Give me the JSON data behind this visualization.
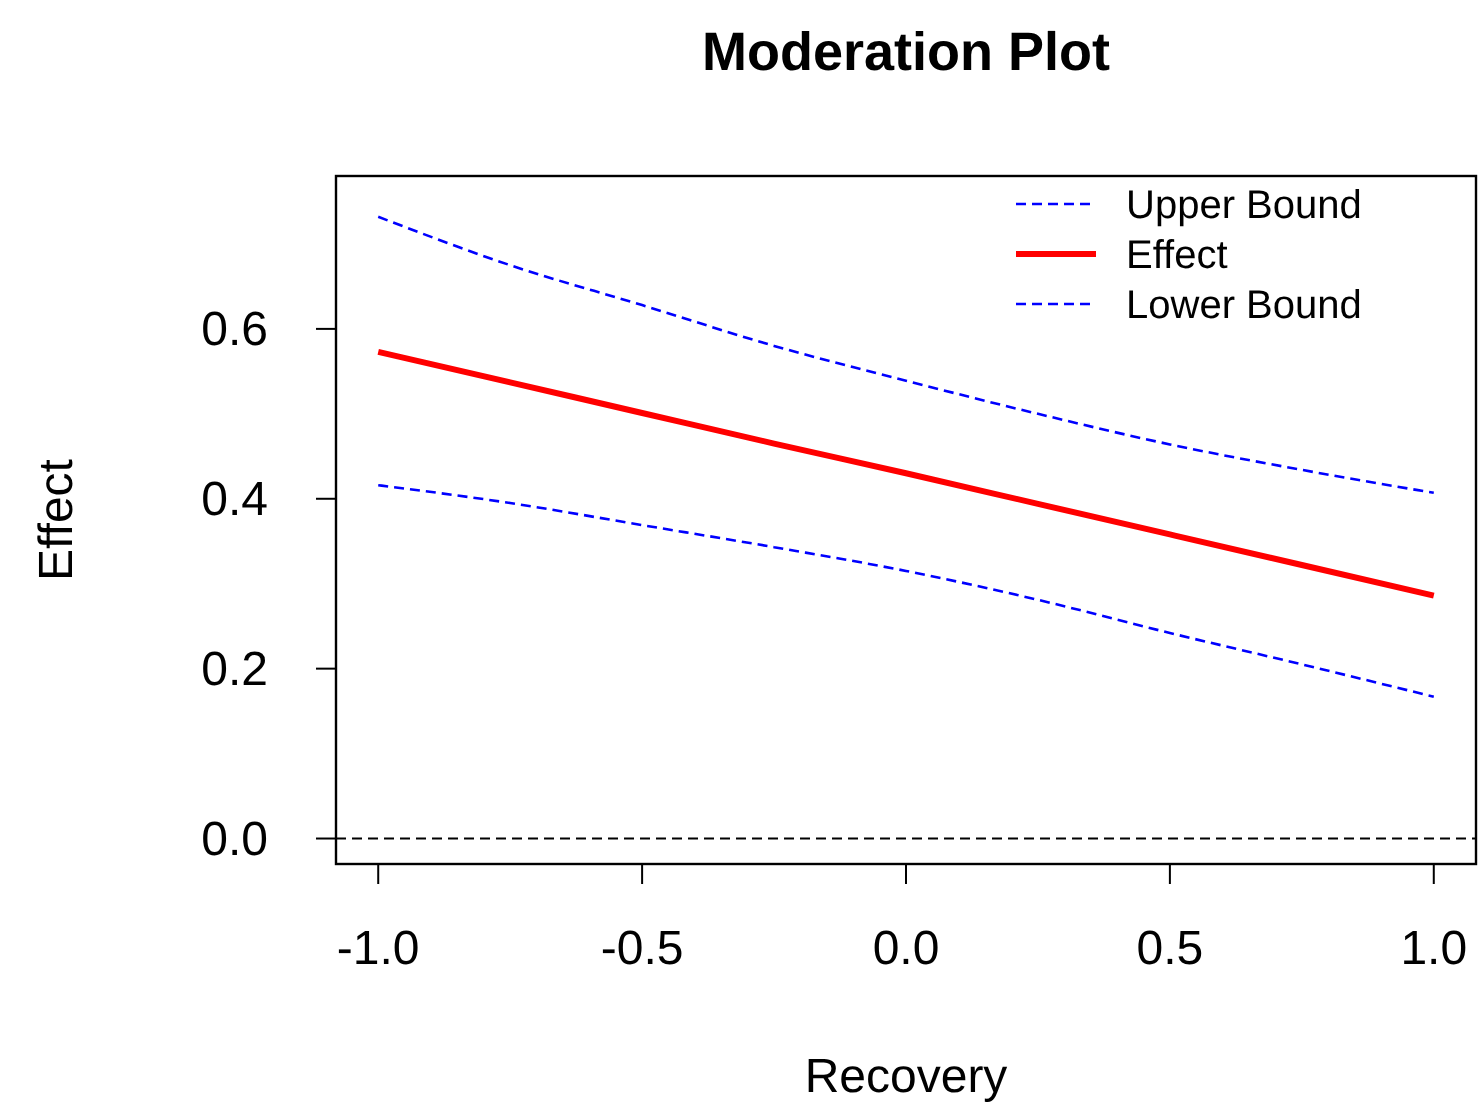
{
  "chart_data": {
    "type": "line",
    "title": "Moderation Plot",
    "xlabel": "Recovery",
    "ylabel": "Effect",
    "x": [
      -1,
      -0.75,
      -0.5,
      -0.25,
      0,
      0.25,
      0.5,
      0.75,
      1
    ],
    "series": [
      {
        "name": "Upper Bound",
        "color": "#0000ff",
        "line_style": "dashed",
        "values": [
          0.732,
          0.675,
          0.628,
          0.58,
          0.539,
          0.5,
          0.464,
          0.434,
          0.407
        ]
      },
      {
        "name": "Effect",
        "color": "#ff0000",
        "line_style": "solid",
        "values": [
          0.573,
          0.537,
          0.501,
          0.465,
          0.43,
          0.394,
          0.358,
          0.322,
          0.286
        ]
      },
      {
        "name": "Lower Bound",
        "color": "#0000ff",
        "line_style": "dashed",
        "values": [
          0.416,
          0.395,
          0.369,
          0.343,
          0.315,
          0.281,
          0.242,
          0.205,
          0.167
        ]
      }
    ],
    "xlim": [
      -1.08,
      1.08
    ],
    "ylim": [
      -0.03,
      0.78
    ],
    "xticks": [
      {
        "value": -1,
        "label": "-1.0"
      },
      {
        "value": -0.5,
        "label": "-0.5"
      },
      {
        "value": 0,
        "label": "0.0"
      },
      {
        "value": 0.5,
        "label": "0.5"
      },
      {
        "value": 1,
        "label": "1.0"
      }
    ],
    "yticks": [
      {
        "value": 0,
        "label": "0.0"
      },
      {
        "value": 0.2,
        "label": "0.2"
      },
      {
        "value": 0.4,
        "label": "0.4"
      },
      {
        "value": 0.6,
        "label": "0.6"
      }
    ],
    "ref_lines": [
      {
        "axis": "y",
        "value": 0,
        "color": "#000000",
        "line_style": "dashed"
      }
    ],
    "legend": "top right",
    "marker": "none",
    "grid": false
  }
}
